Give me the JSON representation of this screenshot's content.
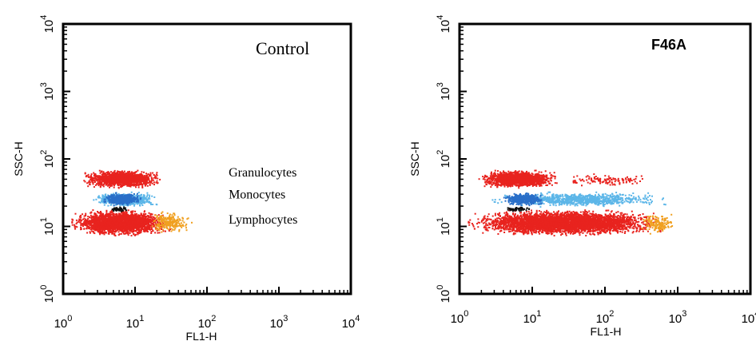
{
  "colors": {
    "granulocytes": "#e8231e",
    "monocytes": "#5cb6e8",
    "monocytes_dense": "#2a6fc8",
    "lymphocytes": "#e8231e",
    "low_intensity": "#f0a020",
    "black_core": "#111111"
  },
  "chart_data": [
    {
      "type": "scatter",
      "title": "Control",
      "xlabel": "FL1-H",
      "ylabel": "SSC-H",
      "x_scale": "log",
      "y_scale": "log",
      "xlim": [
        1,
        10000
      ],
      "ylim": [
        1,
        10000
      ],
      "x_ticks": [
        {
          "base": "10",
          "exp": "0"
        },
        {
          "base": "10",
          "exp": "1"
        },
        {
          "base": "10",
          "exp": "2"
        },
        {
          "base": "10",
          "exp": "3"
        },
        {
          "base": "10",
          "exp": "4"
        }
      ],
      "y_ticks": [
        {
          "base": "10",
          "exp": "0"
        },
        {
          "base": "10",
          "exp": "1"
        },
        {
          "base": "10",
          "exp": "2"
        },
        {
          "base": "10",
          "exp": "3"
        },
        {
          "base": "10",
          "exp": "4"
        }
      ],
      "annotations": [
        {
          "text": "Granulocytes",
          "x": 200,
          "y": 55
        },
        {
          "text": "Monocytes",
          "x": 200,
          "y": 26
        },
        {
          "text": "Lymphocytes",
          "x": 200,
          "y": 11
        }
      ],
      "populations": [
        {
          "name": "Granulocytes",
          "color": "granulocytes",
          "x_range": [
            1.8,
            22
          ],
          "y_range": [
            38,
            70
          ],
          "count": 1400
        },
        {
          "name": "Monocytes",
          "color": "monocytes",
          "x_range": [
            2.5,
            20
          ],
          "y_range": [
            20,
            33
          ],
          "count": 700
        },
        {
          "name": "Monocytes-core",
          "color": "monocytes_dense",
          "x_range": [
            3.5,
            12
          ],
          "y_range": [
            21,
            32
          ],
          "count": 500
        },
        {
          "name": "Lymphocytes",
          "color": "lymphocytes",
          "x_range": [
            1.3,
            30
          ],
          "y_range": [
            7.5,
            18
          ],
          "count": 2600
        },
        {
          "name": "Lymphocytes-edge",
          "color": "low_intensity",
          "x_range": [
            15,
            60
          ],
          "y_range": [
            8,
            17
          ],
          "count": 220
        },
        {
          "name": "Core",
          "color": "black_core",
          "x_range": [
            4,
            8
          ],
          "y_range": [
            17,
            20
          ],
          "count": 60
        }
      ]
    },
    {
      "type": "scatter",
      "title": "F46A",
      "xlabel": "FL1-H",
      "ylabel": "SSC-H",
      "x_scale": "log",
      "y_scale": "log",
      "xlim": [
        1,
        10000
      ],
      "ylim": [
        1,
        10000
      ],
      "x_ticks": [
        {
          "base": "10",
          "exp": "0"
        },
        {
          "base": "10",
          "exp": "1"
        },
        {
          "base": "10",
          "exp": "2"
        },
        {
          "base": "10",
          "exp": "3"
        },
        {
          "base": "10",
          "exp": "4"
        }
      ],
      "y_ticks": [
        {
          "base": "10",
          "exp": "0"
        },
        {
          "base": "10",
          "exp": "1"
        },
        {
          "base": "10",
          "exp": "2"
        },
        {
          "base": "10",
          "exp": "3"
        },
        {
          "base": "10",
          "exp": "4"
        }
      ],
      "annotations": [],
      "populations": [
        {
          "name": "Granulocytes",
          "color": "granulocytes",
          "x_range": [
            1.8,
            22
          ],
          "y_range": [
            38,
            70
          ],
          "count": 1400
        },
        {
          "name": "Granulocytes-sparse",
          "color": "granulocytes",
          "x_range": [
            22,
            500
          ],
          "y_range": [
            40,
            62
          ],
          "count": 120
        },
        {
          "name": "Monocytes",
          "color": "monocytes",
          "x_range": [
            2.5,
            700
          ],
          "y_range": [
            20,
            33
          ],
          "count": 900
        },
        {
          "name": "Monocytes-core",
          "color": "monocytes_dense",
          "x_range": [
            4,
            14
          ],
          "y_range": [
            21,
            32
          ],
          "count": 500
        },
        {
          "name": "Lymphocytes",
          "color": "lymphocytes",
          "x_range": [
            1.3,
            600
          ],
          "y_range": [
            7.5,
            18
          ],
          "count": 4200
        },
        {
          "name": "Lymphocytes-edge",
          "color": "low_intensity",
          "x_range": [
            300,
            900
          ],
          "y_range": [
            8,
            16
          ],
          "count": 150
        },
        {
          "name": "Core",
          "color": "black_core",
          "x_range": [
            4,
            9
          ],
          "y_range": [
            17,
            20
          ],
          "count": 60
        }
      ]
    }
  ]
}
